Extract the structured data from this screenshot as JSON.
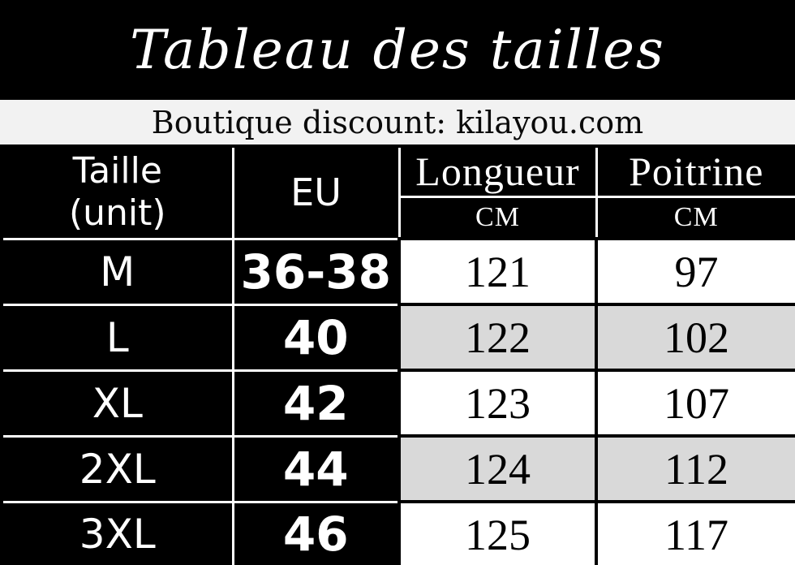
{
  "title": "Tableau des tailles",
  "banner": {
    "text": "Boutique discount: kilayou.com"
  },
  "table": {
    "col1_header_line1": "Taille",
    "col1_header_line2": "(unit)",
    "col2_header": "EU",
    "col3_header": "Longueur",
    "col4_header": "Poitrine",
    "unit_label": "CM",
    "rows": [
      {
        "size": "M",
        "eu": "36-38",
        "longueur": "121",
        "poitrine": "97"
      },
      {
        "size": "L",
        "eu": "40",
        "longueur": "122",
        "poitrine": "102"
      },
      {
        "size": "XL",
        "eu": "42",
        "longueur": "123",
        "poitrine": "107"
      },
      {
        "size": "2XL",
        "eu": "44",
        "longueur": "124",
        "poitrine": "112"
      },
      {
        "size": "3XL",
        "eu": "46",
        "longueur": "125",
        "poitrine": "117"
      }
    ]
  },
  "colors": {
    "black": "#000000",
    "white": "#ffffff",
    "banner_bg": "#f2f2f2",
    "row_alt_gray": "#d9d9d9",
    "banner_text": "#0a0a0a"
  }
}
